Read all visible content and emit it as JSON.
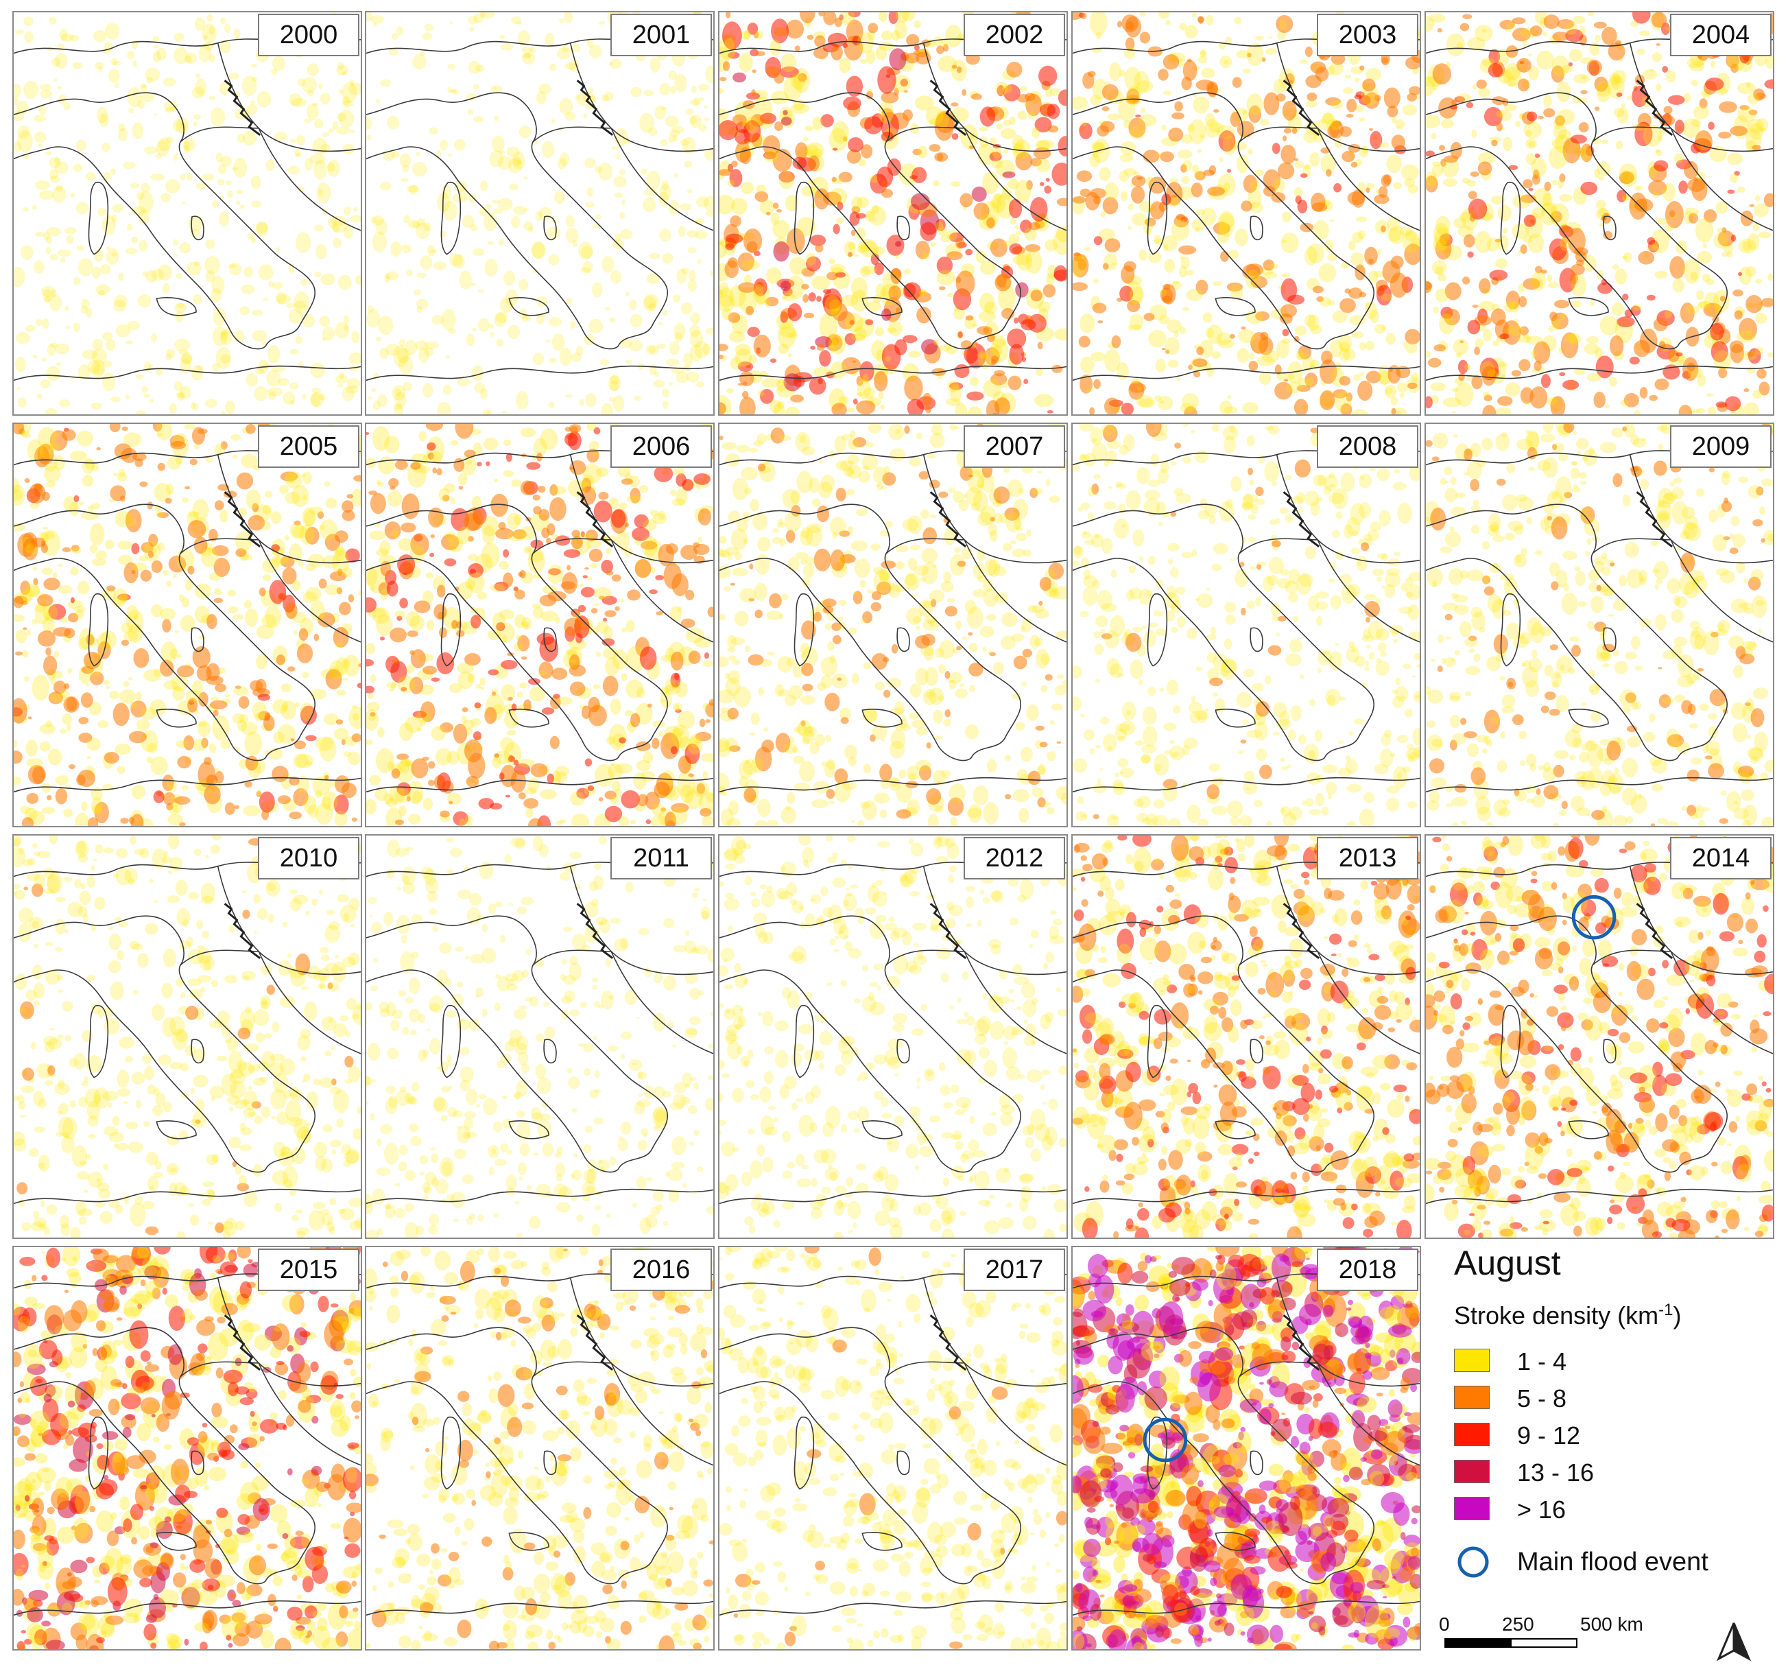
{
  "panels": [
    {
      "year": "2000",
      "density": 0.25,
      "flood_event": false
    },
    {
      "year": "2001",
      "density": 0.2,
      "flood_event": false
    },
    {
      "year": "2002",
      "density": 0.55,
      "flood_event": false
    },
    {
      "year": "2003",
      "density": 0.45,
      "flood_event": false
    },
    {
      "year": "2004",
      "density": 0.5,
      "flood_event": false
    },
    {
      "year": "2005",
      "density": 0.45,
      "flood_event": false
    },
    {
      "year": "2006",
      "density": 0.5,
      "flood_event": false
    },
    {
      "year": "2007",
      "density": 0.35,
      "flood_event": false
    },
    {
      "year": "2008",
      "density": 0.3,
      "flood_event": false
    },
    {
      "year": "2009",
      "density": 0.35,
      "flood_event": false
    },
    {
      "year": "2010",
      "density": 0.3,
      "flood_event": false
    },
    {
      "year": "2011",
      "density": 0.2,
      "flood_event": false
    },
    {
      "year": "2012",
      "density": 0.25,
      "flood_event": false
    },
    {
      "year": "2013",
      "density": 0.5,
      "flood_event": false
    },
    {
      "year": "2014",
      "density": 0.5,
      "flood_event": true
    },
    {
      "year": "2015",
      "density": 0.6,
      "flood_event": false
    },
    {
      "year": "2016",
      "density": 0.35,
      "flood_event": false
    },
    {
      "year": "2017",
      "density": 0.3,
      "flood_event": false
    },
    {
      "year": "2018",
      "density": 0.9,
      "flood_event": true
    }
  ],
  "legend": {
    "title": "August",
    "subtitle": "Stroke density (km",
    "subtitle_exp": "-1",
    "subtitle_close": ")",
    "classes": [
      {
        "label": "1 - 4",
        "color": "#ffe600"
      },
      {
        "label": "5 - 8",
        "color": "#ff7a00"
      },
      {
        "label": "9 - 12",
        "color": "#ff1a00"
      },
      {
        "label": "13 - 16",
        "color": "#d2103f"
      },
      {
        "label": "> 16",
        "color": "#c808c0"
      }
    ],
    "flood_label": "Main flood event",
    "flood_color": "#1560b0"
  },
  "scale": {
    "ticks": [
      "0",
      "250",
      "500 km"
    ]
  }
}
